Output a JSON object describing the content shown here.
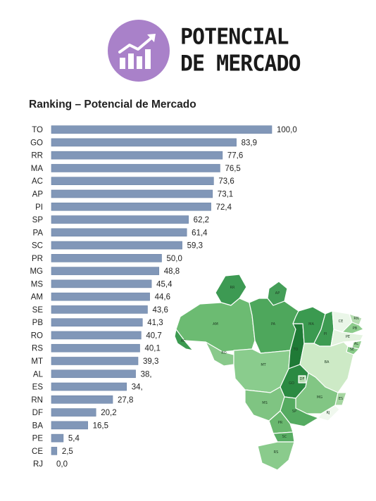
{
  "header": {
    "title_line1": "POTENCIAL",
    "title_line2": "DE MERCADO",
    "icon": "growth-bar-chart-icon",
    "icon_circle_color": "#a981c9"
  },
  "chart_data": {
    "type": "bar",
    "orientation": "horizontal",
    "title": "Ranking – Potencial de Mercado",
    "categories": [
      "TO",
      "GO",
      "RR",
      "MA",
      "AC",
      "AP",
      "PI",
      "SP",
      "PA",
      "SC",
      "PR",
      "MG",
      "MS",
      "AM",
      "SE",
      "PB",
      "RO",
      "RS",
      "MT",
      "AL",
      "ES",
      "RN",
      "DF",
      "BA",
      "PE",
      "CE",
      "RJ"
    ],
    "values": [
      100.0,
      83.9,
      77.6,
      76.5,
      73.6,
      73.1,
      72.4,
      62.2,
      61.4,
      59.3,
      50.0,
      48.8,
      45.4,
      44.6,
      43.6,
      41.3,
      40.7,
      40.1,
      39.3,
      38.2,
      34.1,
      27.8,
      20.2,
      16.5,
      5.4,
      2.5,
      0.0
    ],
    "value_labels": [
      "100,0",
      "83,9",
      "77,6",
      "76,5",
      "73,6",
      "73,1",
      "72,4",
      "62,2",
      "61,4",
      "59,3",
      "50,0",
      "48,8",
      "45,4",
      "44,6",
      "43,6",
      "41,3",
      "40,7",
      "40,1",
      "39,3",
      "38,",
      "34,",
      "27,8",
      "20,2",
      "16,5",
      "5,4",
      "2,5",
      "0,0"
    ],
    "xlim": [
      0,
      100
    ],
    "bar_color": "#8197b8",
    "grid": false,
    "legend": "none"
  },
  "map": {
    "states": [
      {
        "code": "RR",
        "label": "RR",
        "color": "#3d9a53"
      },
      {
        "code": "AP",
        "label": "AP",
        "color": "#449e58"
      },
      {
        "code": "AM",
        "label": "AM",
        "color": "#6cbb72"
      },
      {
        "code": "PA",
        "label": "PA",
        "color": "#4ea75c"
      },
      {
        "code": "AC",
        "label": "AC",
        "color": "#3b9a50"
      },
      {
        "code": "RO",
        "label": "RO",
        "color": "#89c98b"
      },
      {
        "code": "MT",
        "label": "MT",
        "color": "#8acc8d"
      },
      {
        "code": "TO",
        "label": "TO",
        "color": "#1f7a36"
      },
      {
        "code": "MA",
        "label": "MA",
        "color": "#3b9a50"
      },
      {
        "code": "PI",
        "label": "PI",
        "color": "#3e9b52"
      },
      {
        "code": "CE",
        "label": "CE",
        "color": "#eaf6e8"
      },
      {
        "code": "RN",
        "label": "RN",
        "color": "#b6ddb1"
      },
      {
        "code": "PB",
        "label": "PB",
        "color": "#8dcc8c"
      },
      {
        "code": "PE",
        "label": "PE",
        "color": "#e3f3df"
      },
      {
        "code": "AL",
        "label": "AL",
        "color": "#93cf91"
      },
      {
        "code": "SE",
        "label": "SE",
        "color": "#86c987"
      },
      {
        "code": "BA",
        "label": "BA",
        "color": "#cdeac6"
      },
      {
        "code": "GO",
        "label": "GO",
        "color": "#2b8a42"
      },
      {
        "code": "DF",
        "label": "DF",
        "color": "#b7deb2"
      },
      {
        "code": "MG",
        "label": "MG",
        "color": "#82c684"
      },
      {
        "code": "ES",
        "label": "ES",
        "color": "#a6d6a1"
      },
      {
        "code": "MS",
        "label": "MS",
        "color": "#7fc482"
      },
      {
        "code": "SP",
        "label": "SP",
        "color": "#55ab61"
      },
      {
        "code": "RJ",
        "label": "RJ",
        "color": "#f0f8ee"
      },
      {
        "code": "PR",
        "label": "PR",
        "color": "#6ab86f"
      },
      {
        "code": "SC",
        "label": "SC",
        "color": "#58ad63"
      },
      {
        "code": "RS",
        "label": "RS",
        "color": "#8acb8c"
      }
    ]
  }
}
